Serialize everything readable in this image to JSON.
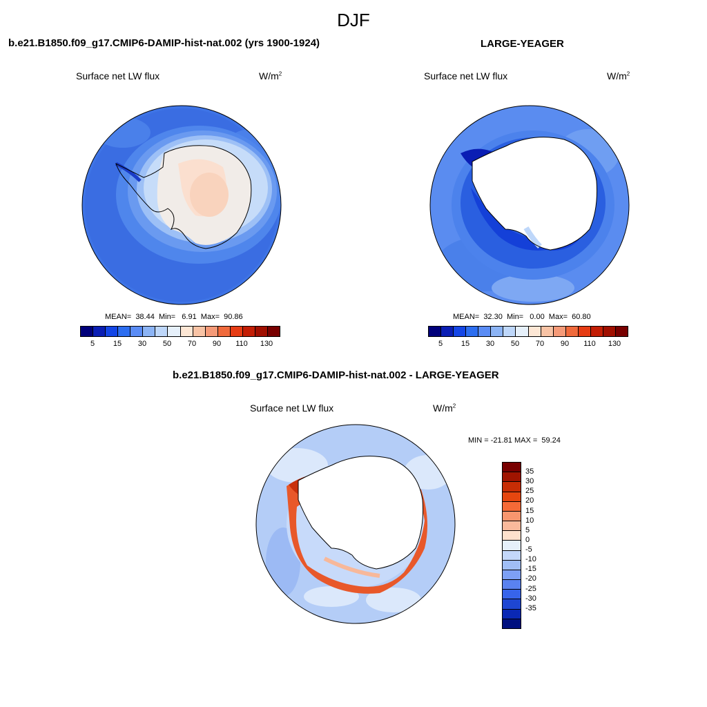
{
  "season": "DJF",
  "panels": {
    "left": {
      "case": "b.e21.B1850.f09_g17.CMIP6-DAMIP-hist-nat.002 (yrs 1900-1924)",
      "variable": "Surface net LW flux",
      "unit_base": "W/m",
      "unit_exp": "2",
      "stats": "MEAN=  38.44  Min=   6.91  Max=  90.86"
    },
    "right": {
      "case": "LARGE-YEAGER",
      "variable": "Surface net LW flux",
      "unit_base": "W/m",
      "unit_exp": "2",
      "stats": "MEAN=  32.30  Min=   0.00  Max=  60.80"
    },
    "diff": {
      "case": "b.e21.B1850.f09_g17.CMIP6-DAMIP-hist-nat.002 - LARGE-YEAGER",
      "variable": "Surface net LW flux",
      "unit_base": "W/m",
      "unit_exp": "2",
      "stats": "MIN = -21.81 MAX =  59.24"
    }
  },
  "colorbar_abs": {
    "colors": [
      "#00007a",
      "#0a1eb4",
      "#1446e6",
      "#2d6ef0",
      "#5a8cf5",
      "#8cb4f5",
      "#bed7fa",
      "#e6f0fa",
      "#fde7d5",
      "#f8c3a5",
      "#f59a78",
      "#f06a3c",
      "#e63c14",
      "#c31e05",
      "#a00f00",
      "#780000"
    ],
    "labels": [
      "5",
      "15",
      "30",
      "50",
      "70",
      "90",
      "110",
      "130"
    ]
  },
  "colorbar_diff": {
    "colors": [
      "#780000",
      "#a01400",
      "#c82d05",
      "#e6460f",
      "#f56a37",
      "#f8966e",
      "#fab99b",
      "#fde1cd",
      "#e6f0fa",
      "#c3d7fa",
      "#a0bef5",
      "#7da0f5",
      "#5a82f0",
      "#3764eb",
      "#1e46d2",
      "#0a28b4",
      "#00107f"
    ],
    "labels": [
      "35",
      "30",
      "25",
      "20",
      "15",
      "10",
      "5",
      "0",
      "-5",
      "-10",
      "-15",
      "-20",
      "-25",
      "-30",
      "-35"
    ]
  },
  "chart_data": [
    {
      "type": "heatmap",
      "projection": "south polar stereographic",
      "title": "b.e21.B1850.f09_g17.CMIP6-DAMIP-hist-nat.002 (yrs 1900-1924)",
      "variable": "Surface net LW flux",
      "units": "W/m2",
      "mean": 38.44,
      "min": 6.91,
      "max": 90.86,
      "contour_levels": [
        5,
        10,
        15,
        20,
        30,
        40,
        50,
        60,
        70,
        80,
        90,
        100,
        110,
        120,
        130
      ]
    },
    {
      "type": "heatmap",
      "projection": "south polar stereographic",
      "title": "LARGE-YEAGER",
      "variable": "Surface net LW flux",
      "units": "W/m2",
      "mean": 32.3,
      "min": 0.0,
      "max": 60.8,
      "contour_levels": [
        5,
        10,
        15,
        20,
        30,
        40,
        50,
        60,
        70,
        80,
        90,
        100,
        110,
        120,
        130
      ]
    },
    {
      "type": "heatmap",
      "projection": "south polar stereographic",
      "title": "b.e21.B1850.f09_g17.CMIP6-DAMIP-hist-nat.002 - LARGE-YEAGER",
      "variable": "Surface net LW flux",
      "units": "W/m2",
      "min": -21.81,
      "max": 59.24,
      "contour_levels": [
        -35,
        -30,
        -25,
        -20,
        -15,
        -10,
        -5,
        0,
        5,
        10,
        15,
        20,
        25,
        30,
        35
      ]
    }
  ]
}
